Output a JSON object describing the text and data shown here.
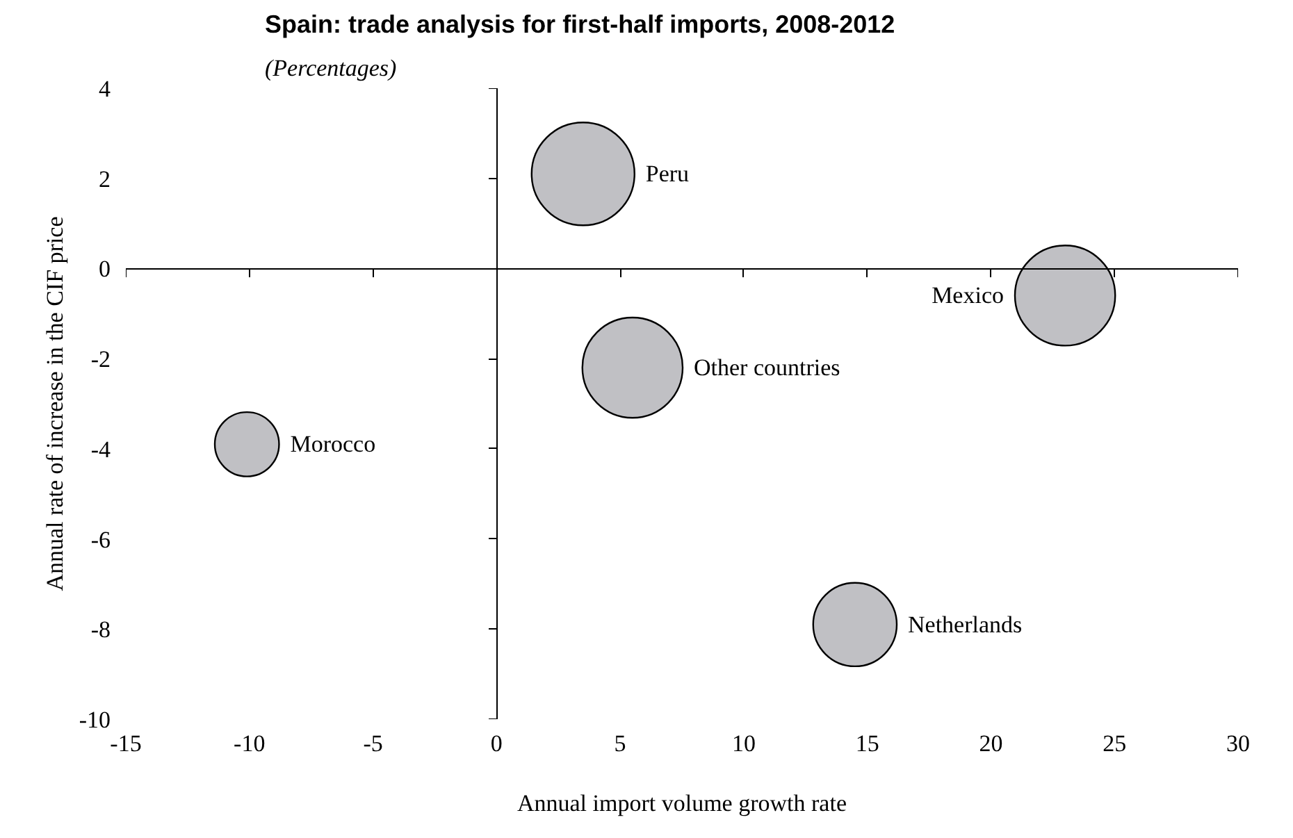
{
  "chart_data": {
    "type": "bubble",
    "title": "Spain: trade analysis for first-half imports, 2008-2012",
    "subtitle": "(Percentages)",
    "xlabel": "Annual import volume growth rate",
    "ylabel": "Annual rate of increase in the CIF price",
    "xlim": [
      -15,
      30
    ],
    "xticks": [
      -15,
      -10,
      -5,
      0,
      5,
      10,
      15,
      20,
      25,
      30
    ],
    "ylim": [
      -10,
      4
    ],
    "yticks": [
      -10,
      -8,
      -6,
      -4,
      -2,
      0,
      2,
      4
    ],
    "series": [
      {
        "name": "Peru",
        "color": "#c0c0c4",
        "x": [
          3.5
        ],
        "values": [
          2.1
        ],
        "sizes": [
          1
        ]
      },
      {
        "name": "Mexico",
        "color": "#c0c0c4",
        "x": [
          23
        ],
        "values": [
          -0.6
        ],
        "sizes": [
          0.95
        ]
      },
      {
        "name": "Other countries",
        "color": "#c0c0c4",
        "x": [
          5.5
        ],
        "values": [
          -2.2
        ],
        "sizes": [
          0.95
        ]
      },
      {
        "name": "Morocco",
        "color": "#c0c0c4",
        "x": [
          -10.1
        ],
        "values": [
          -3.9
        ],
        "sizes": [
          0.39
        ]
      },
      {
        "name": "Netherlands",
        "color": "#c0c0c4",
        "x": [
          14.5
        ],
        "values": [
          -7.9
        ],
        "sizes": [
          0.66
        ]
      }
    ]
  }
}
